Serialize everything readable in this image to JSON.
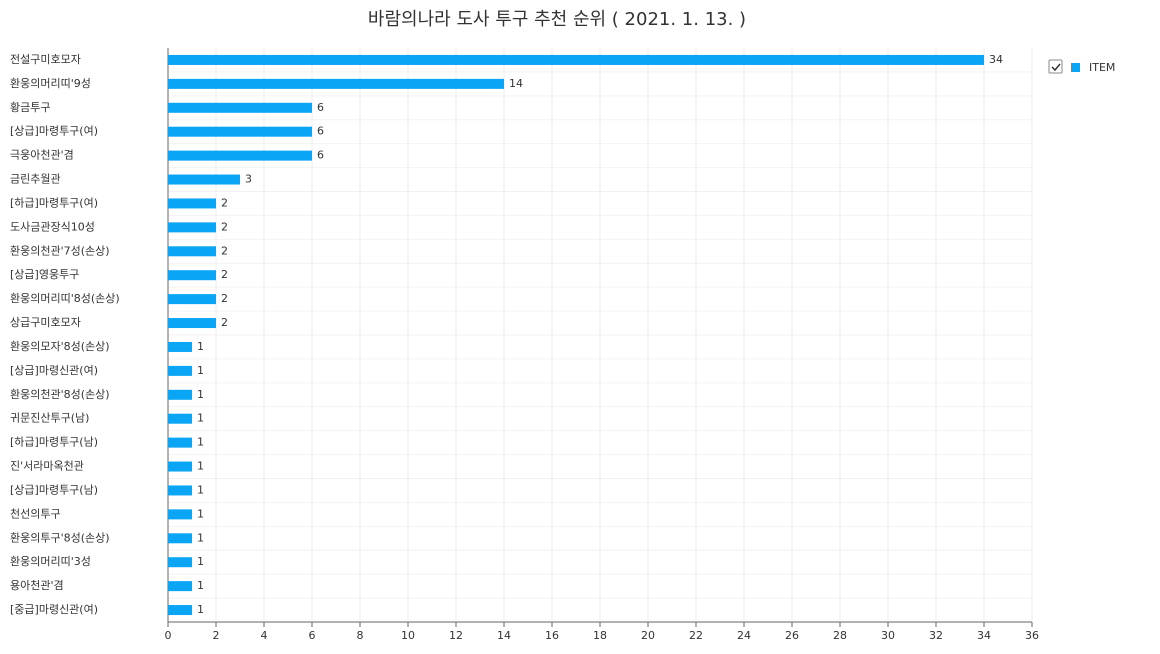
{
  "chart_data": {
    "type": "bar",
    "orientation": "horizontal",
    "title": "바람의나라 도사 투구 추천 순위 ( 2021. 1. 13. )",
    "categories": [
      "전설구미호모자",
      "환웅의머리띠'9성",
      "황금투구",
      "[상급]마령투구(여)",
      "극웅아천관'겸",
      "금린추월관",
      "[하급]마령투구(여)",
      "도사금관장식10성",
      "환웅의천관'7성(손상)",
      "[상급]영웅투구",
      "환웅의머리띠'8성(손상)",
      "상급구미호모자",
      "환웅의모자'8성(손상)",
      "[상급]마령신관(여)",
      "환웅의천관'8성(손상)",
      "귀문진산투구(남)",
      "[하급]마령투구(남)",
      "진'서라마옥천관",
      "[상급]마령투구(남)",
      "천선의투구",
      "환웅의투구'8성(손상)",
      "환웅의머리띠'3성",
      "용아천관'겸",
      "[중급]마령신관(여)"
    ],
    "series": [
      {
        "name": "ITEM",
        "color": "#0aa5f5",
        "values": [
          34,
          14,
          6,
          6,
          6,
          3,
          2,
          2,
          2,
          2,
          2,
          2,
          1,
          1,
          1,
          1,
          1,
          1,
          1,
          1,
          1,
          1,
          1,
          1
        ]
      }
    ],
    "xlim": [
      0,
      36
    ],
    "xticks": [
      0,
      2,
      4,
      6,
      8,
      10,
      12,
      14,
      16,
      18,
      20,
      22,
      24,
      26,
      28,
      30,
      32,
      34,
      36
    ],
    "grid": true,
    "legend": "top-right"
  }
}
